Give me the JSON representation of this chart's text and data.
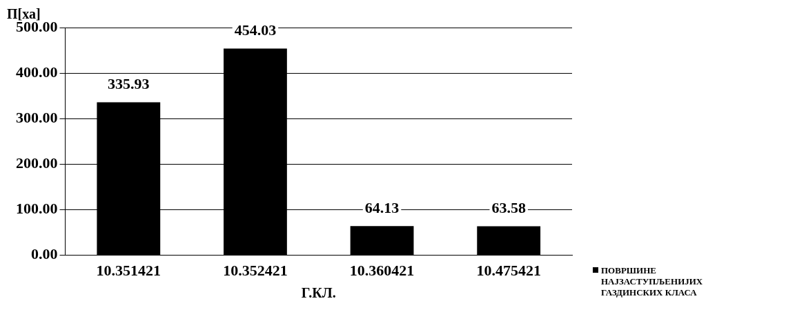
{
  "chart_data": {
    "type": "bar",
    "categories": [
      "10.351421",
      "10.352421",
      "10.360421",
      "10.475421"
    ],
    "series": [
      {
        "name": "ПОВРШИНЕ НАЈЗАСТУПЉЕНИЈИХ ГАЗДИНСКИХ КЛАСА",
        "color": "#000000",
        "values": [
          335.93,
          454.03,
          64.13,
          63.58
        ]
      }
    ],
    "xlabel": "Г.КЛ.",
    "ylabel": "П[ха]",
    "ylim": [
      0,
      500
    ],
    "yticks": [
      {
        "value": 0,
        "label": "0.00"
      },
      {
        "value": 100,
        "label": "100.00"
      },
      {
        "value": 200,
        "label": "200.00"
      },
      {
        "value": 300,
        "label": "300.00"
      },
      {
        "value": 400,
        "label": "400.00"
      },
      {
        "value": 500,
        "label": "500.00"
      }
    ],
    "grid": "y",
    "legend": "bottom right",
    "data_labels": true
  }
}
